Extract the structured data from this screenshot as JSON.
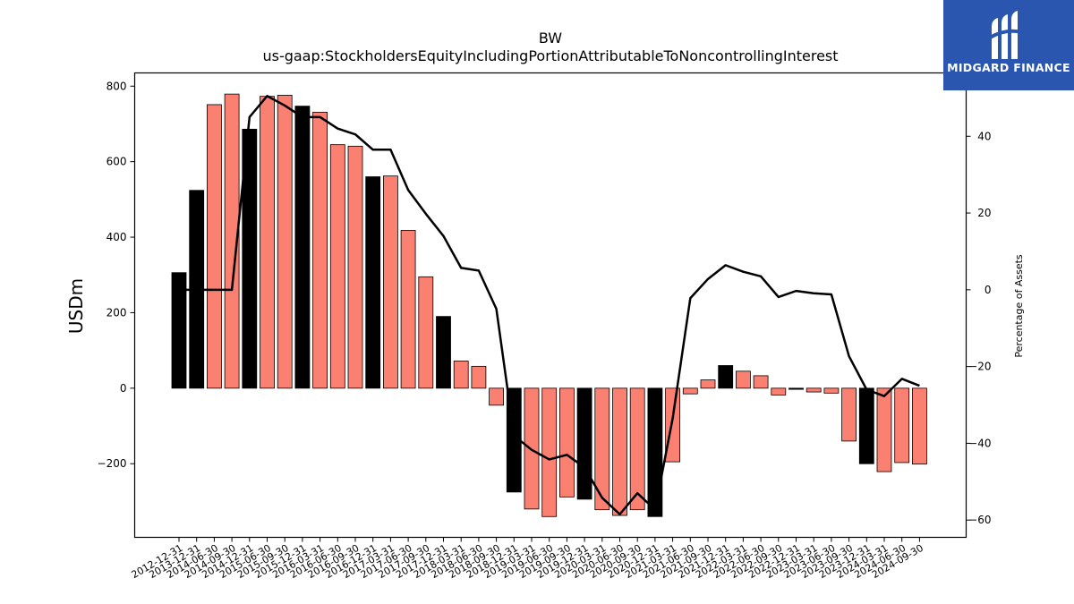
{
  "chart_data": {
    "type": "bar",
    "title": "BW",
    "subtitle": "us-gaap:StockholdersEquityIncludingPortionAttributableToNoncontrollingInterest",
    "ylabel": "USDm",
    "y2label": "Percentage of Assets",
    "ylim": [
      -395,
      835
    ],
    "y2lim": [
      -64.5,
      56.5
    ],
    "yticks": [
      800,
      600,
      400,
      200,
      0,
      -200
    ],
    "y2ticks": [
      40,
      20,
      0,
      -20,
      -40,
      -60
    ],
    "categories": [
      "2012-12-31",
      "2013-12-31",
      "2014-06-30",
      "2014-09-30",
      "2014-12-31",
      "2015-06-30",
      "2015-09-30",
      "2015-12-31",
      "2016-03-31",
      "2016-06-30",
      "2016-09-30",
      "2016-12-31",
      "2017-03-31",
      "2017-06-30",
      "2017-09-30",
      "2017-12-31",
      "2018-03-31",
      "2018-06-30",
      "2018-09-30",
      "2018-12-31",
      "2019-03-31",
      "2019-06-30",
      "2019-09-30",
      "2019-12-31",
      "2020-03-31",
      "2020-06-30",
      "2020-09-30",
      "2020-12-31",
      "2021-03-31",
      "2021-06-30",
      "2021-09-30",
      "2021-12-31",
      "2022-03-31",
      "2022-06-30",
      "2022-09-30",
      "2022-12-31",
      "2023-03-31",
      "2023-06-30",
      "2023-09-30",
      "2023-12-31",
      "2024-03-31",
      "2024-06-30",
      "2024-09-30"
    ],
    "series": [
      {
        "type": "bar",
        "values": [
          306,
          524,
          751,
          779,
          686,
          773,
          776,
          747,
          731,
          645,
          641,
          560,
          562,
          418,
          295,
          190,
          72,
          58,
          -45,
          -275,
          -320,
          -340,
          -288,
          -294,
          -322,
          -337,
          -322,
          -340,
          -195,
          -15,
          22,
          60,
          45,
          33,
          -18,
          -3,
          -10,
          -13,
          -140,
          -200,
          -221,
          -197,
          -201
        ],
        "highlight": [
          true,
          true,
          false,
          false,
          true,
          false,
          false,
          true,
          false,
          false,
          false,
          true,
          false,
          false,
          false,
          true,
          false,
          false,
          false,
          true,
          false,
          false,
          false,
          true,
          false,
          false,
          false,
          true,
          false,
          false,
          false,
          true,
          false,
          false,
          false,
          true,
          false,
          false,
          false,
          true,
          false,
          false,
          false
        ]
      },
      {
        "type": "line",
        "axis": "right",
        "values": [
          0,
          0,
          0,
          0,
          45,
          50.5,
          48,
          45,
          45,
          42,
          40.5,
          36.5,
          36.5,
          26,
          19.8,
          14,
          5.7,
          5,
          -5,
          -38,
          -41.7,
          -44.2,
          -43,
          -46.3,
          -54.2,
          -58.5,
          -53,
          -57.3,
          -33.5,
          -2.2,
          2.8,
          6.4,
          4.7,
          3.5,
          -1.9,
          -0.3,
          -0.9,
          -1.2,
          -17.3,
          -26,
          -27.7,
          -23.2,
          -25
        ]
      }
    ],
    "colors": {
      "bar": "#fa8072",
      "highlight_bar": "#000000",
      "line": "#000000",
      "logo_bg": "#2a56b0"
    }
  },
  "logo": {
    "text": "MIDGARD FINANCE",
    "icon": "midgard-logo-icon"
  }
}
